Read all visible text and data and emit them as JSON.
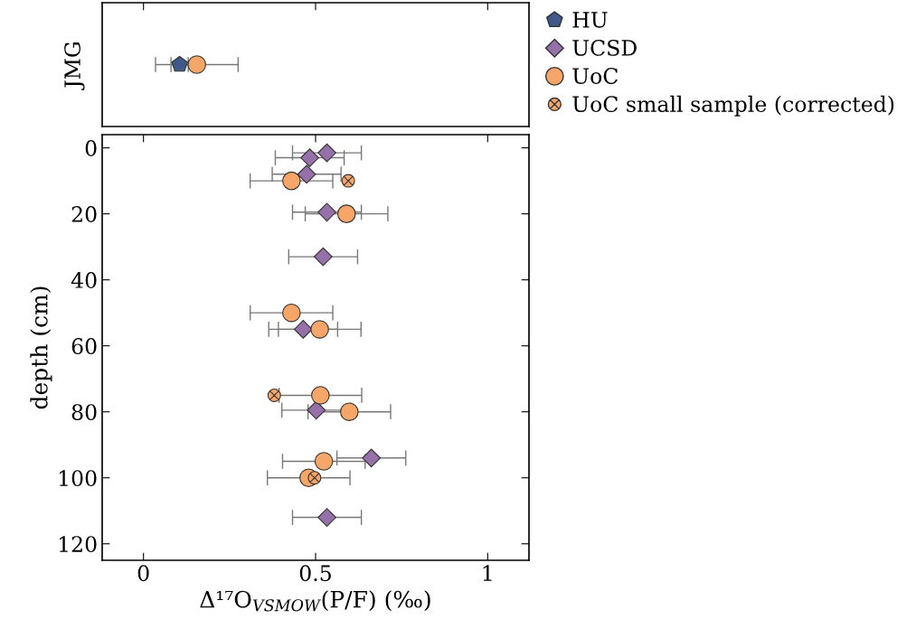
{
  "chart_data": [
    {
      "type": "scatter",
      "orientation": "horizontal",
      "categories": [
        "JMG"
      ],
      "xlim": [
        -0.12,
        1.12
      ],
      "xticks": [
        0,
        0.5,
        1
      ],
      "tick_labels": "y",
      "legend": "right",
      "grid": false,
      "series": [
        {
          "name": "HU",
          "color": "#3f5a8a",
          "values": [
            0.105
          ],
          "errors": [
            0.025
          ]
        },
        {
          "name": "UCSD",
          "color": "#9670a8",
          "marker": "diamond",
          "values": [
            null
          ],
          "errors": [
            null
          ]
        },
        {
          "name": "UoC",
          "color": "#f7a66a",
          "marker": "circle",
          "values": [
            0.155
          ],
          "errors": [
            0.12
          ]
        },
        {
          "name": "UoC small sample (corrected)",
          "color": "#f7a66a",
          "marker": "cross",
          "values": [
            null
          ],
          "errors": [
            null
          ]
        }
      ]
    },
    {
      "type": "scatter",
      "xlabel": "Δ¹⁷O$_{VSMOW}$(P/F) (‰)",
      "ylabel": "depth (cm)",
      "xlim": [
        -0.12,
        1.12
      ],
      "xticks": [
        0,
        0.5,
        1
      ],
      "ylim": [
        125,
        -4
      ],
      "yticks": [
        0,
        20,
        40,
        60,
        80,
        100,
        120
      ],
      "grid": false,
      "series": [
        {
          "color": "#9670a8",
          "marker": "diamond",
          "x": [
            0.533,
            0.483,
            0.474,
            0.533,
            0.522,
            0.464,
            0.502,
            0.662,
            0.533
          ],
          "values": [
            1.5,
            3,
            8,
            19.5,
            33,
            55,
            79.5,
            94,
            112
          ],
          "xerrors": [
            0.1,
            0.1,
            0.1,
            0.1,
            0.1,
            0.1,
            0.1,
            0.1,
            0.1
          ]
        },
        {
          "color": "#f7a66a",
          "marker": "circle",
          "x": [
            0.43,
            0.59,
            0.43,
            0.512,
            0.514,
            0.598,
            0.524,
            0.48
          ],
          "values": [
            10,
            20,
            50,
            55,
            75,
            80,
            95,
            100
          ],
          "xerrors": [
            0.12,
            0.12,
            0.12,
            0.12,
            0.12,
            0.12,
            0.12,
            0.12
          ]
        },
        {
          "color": "#f7a66a",
          "marker": "cross",
          "x": [
            0.595,
            0.38,
            0.497
          ],
          "values": [
            10,
            75,
            100
          ],
          "xerrors": [
            null,
            null,
            null
          ]
        }
      ]
    }
  ]
}
